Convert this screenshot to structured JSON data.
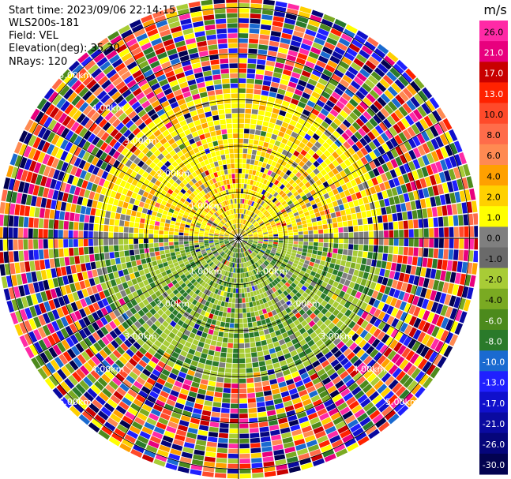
{
  "info": {
    "start_time": "Start time: 2023/09/06 22:14:15",
    "instrument": "WLS200s-181",
    "field": "Field: VEL",
    "elevation": "Elevation(deg): 35.30",
    "nrays": "NRays: 120"
  },
  "ppi": {
    "nrays": 120,
    "range_rings_km": [
      1,
      2,
      3,
      4,
      5
    ],
    "ring_labels": [
      "1.00km",
      "2.00km",
      "3.00km",
      "4.00km",
      "5.00km"
    ],
    "ring_label_directions": [
      "NW",
      "SW",
      "SE"
    ]
  },
  "colorbar": {
    "unit": "m/s",
    "ticks": [
      "26.0",
      "21.0",
      "17.0",
      "13.0",
      "10.0",
      "8.0",
      "6.0",
      "4.0",
      "2.0",
      "1.0",
      "0.0",
      "-1.0",
      "-2.0",
      "-4.0",
      "-6.0",
      "-8.0",
      "-10.0",
      "-13.0",
      "-17.0",
      "-21.0",
      "-26.0",
      "-30.0"
    ],
    "colors": [
      "#ff2aa6",
      "#e8007e",
      "#c80000",
      "#ff2200",
      "#ff4a2a",
      "#ff6c4a",
      "#ff8a52",
      "#ffa000",
      "#ffd000",
      "#ffff00",
      "#7f7f7f",
      "#6a6a6a",
      "#a8cc36",
      "#7aaa22",
      "#4c8a1c",
      "#2a7a2a",
      "#1a6ad0",
      "#2020ff",
      "#1010cc",
      "#0a0aa0",
      "#05057a",
      "#020250"
    ]
  }
}
